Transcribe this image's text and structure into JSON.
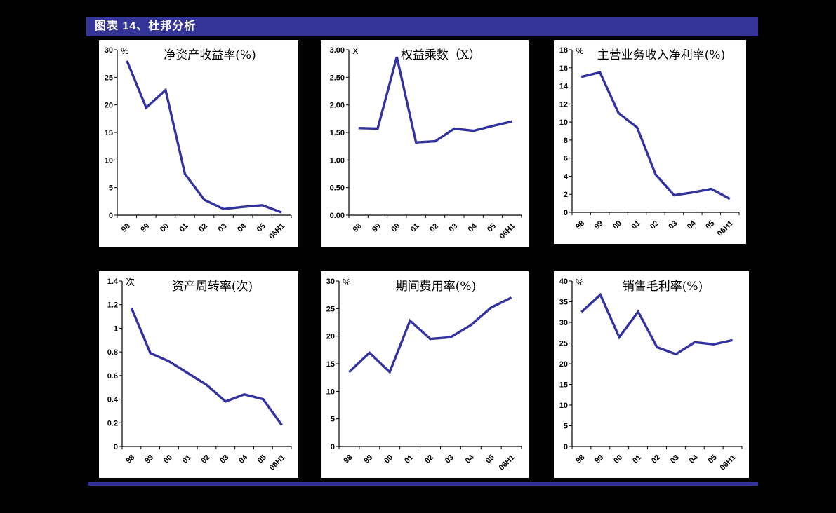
{
  "page": {
    "banner_title": "图表 14、杜邦分析"
  },
  "colors": {
    "background": "#010101",
    "banner_bg": "#353599",
    "banner_text": "#ffffff",
    "panel_bg": "#ffffff",
    "line": "#3333A0",
    "axis": "#000000",
    "bottom_rule": "#333399"
  },
  "x_categories": [
    "98",
    "99",
    "00",
    "01",
    "02",
    "03",
    "04",
    "05",
    "06H1"
  ],
  "chart_data": [
    {
      "type": "line",
      "title": "净资产收益率(%)",
      "unit": "%",
      "categories": [
        "98",
        "99",
        "00",
        "01",
        "02",
        "03",
        "04",
        "05",
        "06H1"
      ],
      "values": [
        28.0,
        19.5,
        22.7,
        7.5,
        2.8,
        1.1,
        1.5,
        1.8,
        0.5
      ],
      "ylim": [
        0,
        30
      ],
      "ytick_values": [
        0,
        5,
        10,
        15,
        20,
        25,
        30
      ],
      "ytick_labels": [
        "0",
        "5",
        "10",
        "15",
        "20",
        "25",
        "30"
      ],
      "grid": "off",
      "legend": "none"
    },
    {
      "type": "line",
      "title": "权益乘数（X）",
      "unit": "X",
      "categories": [
        "98",
        "99",
        "00",
        "01",
        "02",
        "03",
        "04",
        "05",
        "06H1"
      ],
      "values": [
        1.58,
        1.57,
        2.87,
        1.32,
        1.34,
        1.57,
        1.53,
        1.62,
        1.7
      ],
      "ylim": [
        0,
        3
      ],
      "ytick_values": [
        0,
        0.5,
        1,
        1.5,
        2,
        2.5,
        3
      ],
      "ytick_labels": [
        "0.00",
        "0.50",
        "1.00",
        "1.50",
        "2.00",
        "2.50",
        "3.00"
      ],
      "grid": "off",
      "legend": "none"
    },
    {
      "type": "line",
      "title": "主营业务收入净利率(%)",
      "unit": "%",
      "categories": [
        "98",
        "99",
        "00",
        "01",
        "02",
        "03",
        "04",
        "05",
        "06H1"
      ],
      "values": [
        15.0,
        15.5,
        11.0,
        9.4,
        4.2,
        1.9,
        2.2,
        2.6,
        1.5
      ],
      "ylim": [
        0,
        18
      ],
      "ytick_values": [
        0,
        2,
        4,
        6,
        8,
        10,
        12,
        14,
        16,
        18
      ],
      "ytick_labels": [
        "0",
        "2",
        "4",
        "6",
        "8",
        "10",
        "12",
        "14",
        "16",
        "18"
      ],
      "grid": "off",
      "legend": "none"
    },
    {
      "type": "line",
      "title": "资产周转率(次)",
      "unit": "次",
      "categories": [
        "98",
        "99",
        "00",
        "01",
        "02",
        "03",
        "04",
        "05",
        "06H1"
      ],
      "values": [
        1.17,
        0.79,
        0.72,
        0.62,
        0.52,
        0.38,
        0.44,
        0.4,
        0.18
      ],
      "ylim": [
        0,
        1.4
      ],
      "ytick_values": [
        0,
        0.2,
        0.4,
        0.6,
        0.8,
        1,
        1.2,
        1.4
      ],
      "ytick_labels": [
        "0",
        "0.2",
        "0.4",
        "0.6",
        "0.8",
        "1",
        "1.2",
        "1.4"
      ],
      "grid": "off",
      "legend": "none"
    },
    {
      "type": "line",
      "title": "期间费用率(%)",
      "unit": "%",
      "categories": [
        "98",
        "99",
        "00",
        "01",
        "02",
        "03",
        "04",
        "05",
        "06H1"
      ],
      "values": [
        13.5,
        17.0,
        13.5,
        22.8,
        19.5,
        19.8,
        22.0,
        25.2,
        27.0
      ],
      "ylim": [
        0,
        30
      ],
      "ytick_values": [
        0,
        5,
        10,
        15,
        20,
        25,
        30
      ],
      "ytick_labels": [
        "0",
        "5",
        "10",
        "15",
        "20",
        "25",
        "30"
      ],
      "grid": "off",
      "legend": "none"
    },
    {
      "type": "line",
      "title": "销售毛利率(%)",
      "unit": "%",
      "categories": [
        "98",
        "99",
        "00",
        "01",
        "02",
        "03",
        "04",
        "05",
        "06H1"
      ],
      "values": [
        32.5,
        36.7,
        26.4,
        32.6,
        24.0,
        22.3,
        25.2,
        24.7,
        25.7
      ],
      "ylim": [
        0,
        40
      ],
      "ytick_values": [
        0,
        5,
        10,
        15,
        20,
        25,
        30,
        35,
        40
      ],
      "ytick_labels": [
        "0",
        "5",
        "10",
        "15",
        "20",
        "25",
        "30",
        "35",
        "40"
      ],
      "grid": "off",
      "legend": "none"
    }
  ]
}
